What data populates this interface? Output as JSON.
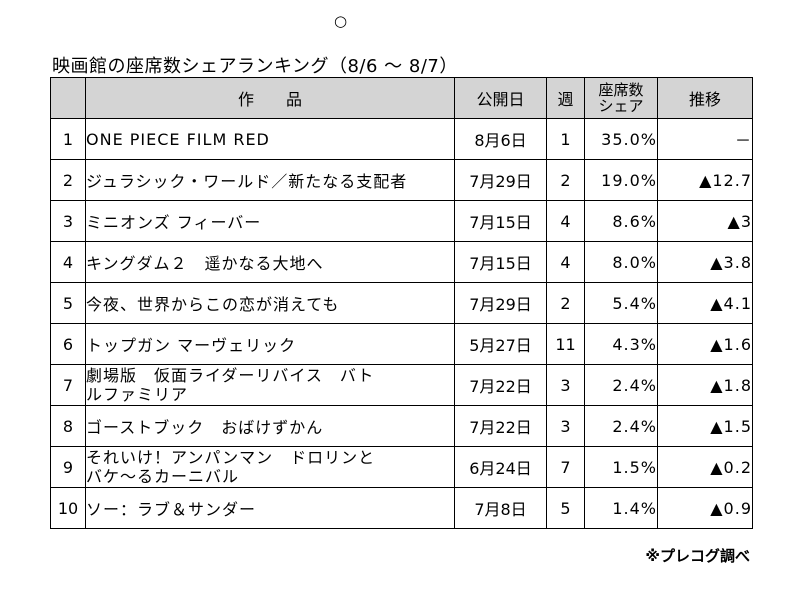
{
  "header_mark": "○",
  "title": "映画館の座席数シェアランキング（8/6 ～ 8/7）",
  "columns": {
    "rank": "",
    "work": "作　　品",
    "release": "公開日",
    "weeks": "週",
    "share_line1": "座席数",
    "share_line2": "シェア",
    "trend": "推移"
  },
  "rows": [
    {
      "rank": "1",
      "work": "ONE PIECE FILM RED",
      "release": "8月6日",
      "weeks": "1",
      "share": "35.0%",
      "trend": "－"
    },
    {
      "rank": "2",
      "work": "ジュラシック・ワールド／新たなる支配者",
      "release": "7月29日",
      "weeks": "2",
      "share": "19.0%",
      "trend": "▲12.7"
    },
    {
      "rank": "3",
      "work": "ミニオンズ フィーバー",
      "release": "7月15日",
      "weeks": "4",
      "share": "8.6%",
      "trend": "▲3"
    },
    {
      "rank": "4",
      "work": "キングダム２　遥かなる大地へ",
      "release": "7月15日",
      "weeks": "4",
      "share": "8.0%",
      "trend": "▲3.8"
    },
    {
      "rank": "5",
      "work": "今夜、世界からこの恋が消えても",
      "release": "7月29日",
      "weeks": "2",
      "share": "5.4%",
      "trend": "▲4.1"
    },
    {
      "rank": "6",
      "work": "トップガン マーヴェリック",
      "release": "5月27日",
      "weeks": "11",
      "share": "4.3%",
      "trend": "▲1.6"
    },
    {
      "rank": "7",
      "work_line1": "劇場版　仮面ライダーリバイス　バト",
      "work_line2": "ルファミリア",
      "release": "7月22日",
      "weeks": "3",
      "share": "2.4%",
      "trend": "▲1.8"
    },
    {
      "rank": "8",
      "work": "ゴーストブック　おばけずかん",
      "release": "7月22日",
      "weeks": "3",
      "share": "2.4%",
      "trend": "▲1.5"
    },
    {
      "rank": "9",
      "work_line1": "それいけ！アンパンマン　ドロリンと",
      "work_line2": "バケ～るカーニバル",
      "release": "6月24日",
      "weeks": "7",
      "share": "1.5%",
      "trend": "▲0.2"
    },
    {
      "rank": "10",
      "work": "ソー：ラブ＆サンダー",
      "release": "7月8日",
      "weeks": "5",
      "share": "1.4%",
      "trend": "▲0.9"
    }
  ],
  "source": "※プレコグ調べ"
}
